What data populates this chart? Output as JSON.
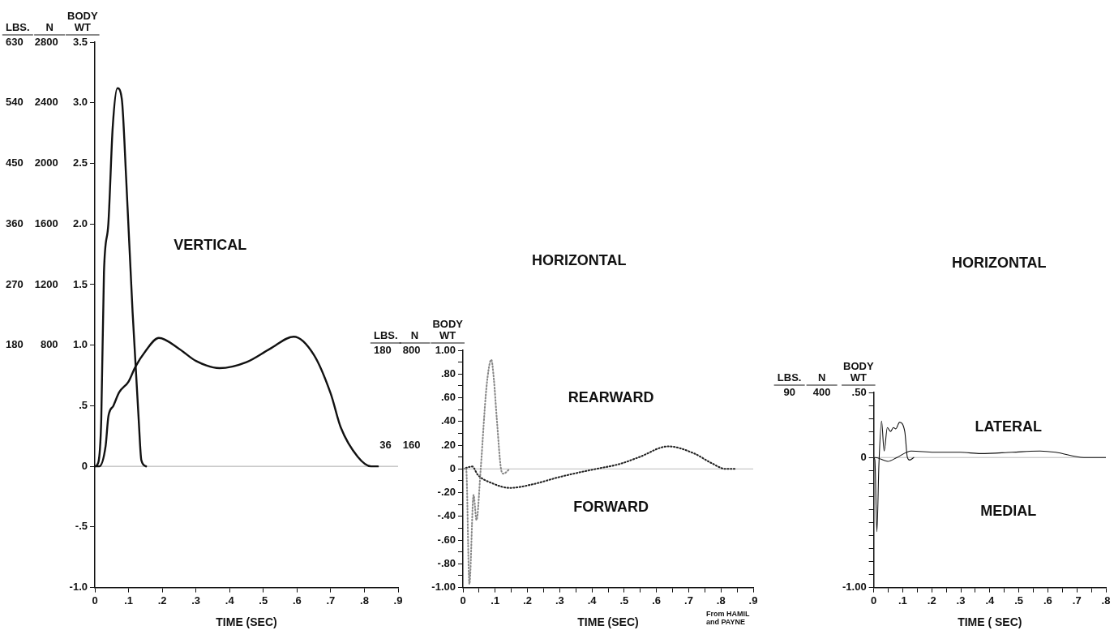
{
  "chart_data": [
    {
      "type": "line",
      "xlabel": "TIME (SEC)",
      "ylabel": "BODY WT",
      "y2label": "LBS.",
      "y3label": "N",
      "annotations": [
        "VERTICAL"
      ],
      "xlim": [
        0,
        0.9
      ],
      "xticks": [
        {
          "value": 0,
          "label": "0"
        },
        {
          "value": 0.1,
          "label": ".1"
        },
        {
          "value": 0.2,
          "label": ".2"
        },
        {
          "value": 0.3,
          "label": ".3"
        },
        {
          "value": 0.4,
          "label": ".4"
        },
        {
          "value": 0.5,
          "label": ".5"
        },
        {
          "value": 0.6,
          "label": ".6"
        },
        {
          "value": 0.7,
          "label": ".7"
        },
        {
          "value": 0.8,
          "label": ".8"
        },
        {
          "value": 0.9,
          "label": ".9"
        }
      ],
      "ylim": [
        -1,
        3.5
      ],
      "yticks": [
        {
          "value": -1,
          "label": "-1.0"
        },
        {
          "value": -0.5,
          "label": "-.5"
        },
        {
          "value": 0,
          "label": "0"
        },
        {
          "value": 0.5,
          "label": ".5"
        },
        {
          "value": 1,
          "label": "1.0"
        },
        {
          "value": 1.5,
          "label": "1.5"
        },
        {
          "value": 2,
          "label": "2.0"
        },
        {
          "value": 2.5,
          "label": "2.5"
        },
        {
          "value": 3,
          "label": "3.0"
        },
        {
          "value": 3.5,
          "label": "3.5"
        }
      ],
      "y2lim": [
        -180,
        630
      ],
      "y2ticks": [
        180,
        270,
        360,
        450,
        540,
        630
      ],
      "y3lim": [
        -800,
        2800
      ],
      "y3ticks": [
        800,
        1200,
        1600,
        2000,
        2400,
        2800
      ],
      "ref_lines": [
        {
          "axis": "y",
          "value": 0,
          "color": "#aaaaaa"
        }
      ],
      "grid": false,
      "legend": false,
      "marker": "none",
      "series": [
        {
          "color": "#111111",
          "line_style": "solid",
          "x": [
            0,
            0.01,
            0.019,
            0.027,
            0.04,
            0.053,
            0.067,
            0.08,
            0.093,
            0.112,
            0.13,
            0.138,
            0.152
          ],
          "values": [
            0,
            0.03,
            0.39,
            1.6,
            2.0,
            2.8,
            3.12,
            3.03,
            2.37,
            1.27,
            0.39,
            0.05,
            0
          ]
        },
        {
          "color": "#111111",
          "line_style": "solid",
          "x": [
            0,
            0.013,
            0.032,
            0.04,
            0.055,
            0.072,
            0.1,
            0.12,
            0.15,
            0.19,
            0.25,
            0.3,
            0.37,
            0.45,
            0.52,
            0.59,
            0.65,
            0.7,
            0.73,
            0.78,
            0.82,
            0.84
          ],
          "values": [
            0,
            0,
            0.17,
            0.41,
            0.5,
            0.61,
            0.7,
            0.82,
            0.95,
            1.06,
            0.97,
            0.87,
            0.81,
            0.86,
            0.97,
            1.07,
            0.92,
            0.6,
            0.32,
            0.08,
            0,
            0
          ]
        }
      ]
    },
    {
      "type": "line",
      "title": "HORIZONTAL",
      "xlabel": "TIME (SEC)",
      "ylabel": "BODY WT",
      "y2label": "LBS.",
      "y3label": "N",
      "annotations": [
        "REARWARD",
        "FORWARD",
        "From HAMIL and PAYNE"
      ],
      "xlim": [
        0,
        0.9
      ],
      "xticks": [
        {
          "value": 0,
          "label": "0"
        },
        {
          "value": 0.05,
          "label": null
        },
        {
          "value": 0.1,
          "label": ".1"
        },
        {
          "value": 0.15,
          "label": null
        },
        {
          "value": 0.2,
          "label": ".2"
        },
        {
          "value": 0.25,
          "label": null
        },
        {
          "value": 0.3,
          "label": ".3"
        },
        {
          "value": 0.35,
          "label": null
        },
        {
          "value": 0.4,
          "label": ".4"
        },
        {
          "value": 0.45,
          "label": null
        },
        {
          "value": 0.5,
          "label": ".5"
        },
        {
          "value": 0.55,
          "label": null
        },
        {
          "value": 0.6,
          "label": ".6"
        },
        {
          "value": 0.65,
          "label": null
        },
        {
          "value": 0.7,
          "label": ".7"
        },
        {
          "value": 0.75,
          "label": null
        },
        {
          "value": 0.8,
          "label": ".8"
        },
        {
          "value": 0.85,
          "label": null
        },
        {
          "value": 0.9,
          "label": ".9"
        }
      ],
      "ylim": [
        -1,
        1
      ],
      "yticks": [
        {
          "value": -1,
          "label": "-1.00"
        },
        {
          "value": -0.9,
          "label": null
        },
        {
          "value": -0.8,
          "label": "-.80"
        },
        {
          "value": -0.7,
          "label": null
        },
        {
          "value": -0.6,
          "label": "-.60"
        },
        {
          "value": -0.5,
          "label": null
        },
        {
          "value": -0.4,
          "label": "-.40"
        },
        {
          "value": -0.3,
          "label": null
        },
        {
          "value": -0.2,
          "label": "-.20"
        },
        {
          "value": -0.1,
          "label": null
        },
        {
          "value": 0,
          "label": "0"
        },
        {
          "value": 0.1,
          "label": null
        },
        {
          "value": 0.2,
          "label": ".20"
        },
        {
          "value": 0.3,
          "label": null
        },
        {
          "value": 0.4,
          "label": ".40"
        },
        {
          "value": 0.5,
          "label": null
        },
        {
          "value": 0.6,
          "label": ".60"
        },
        {
          "value": 0.7,
          "label": null
        },
        {
          "value": 0.8,
          "label": ".80"
        },
        {
          "value": 0.9,
          "label": null
        },
        {
          "value": 1,
          "label": "1.00"
        }
      ],
      "y2lim": [
        -180,
        180
      ],
      "y2ticks": [
        36,
        180
      ],
      "y3lim": [
        -800,
        800
      ],
      "y3ticks": [
        160,
        800
      ],
      "ref_lines": [
        {
          "axis": "y",
          "value": 0,
          "color": "#bbbbbb"
        }
      ],
      "grid": false,
      "legend": false,
      "marker": "none",
      "series": [
        {
          "color": "#888888",
          "line_style": "dotted",
          "x": [
            0,
            0.01,
            0.02,
            0.033,
            0.042,
            0.055,
            0.073,
            0.088,
            0.096,
            0.105,
            0.118,
            0.125,
            0.145
          ],
          "values": [
            0,
            0,
            -0.97,
            -0.22,
            -0.43,
            0,
            0.69,
            0.92,
            0.75,
            0.42,
            0,
            -0.04,
            0
          ]
        },
        {
          "color": "#222222",
          "line_style": "dotted",
          "x": [
            0,
            0.029,
            0.046,
            0.09,
            0.145,
            0.216,
            0.297,
            0.36,
            0.413,
            0.484,
            0.547,
            0.636,
            0.717,
            0.77,
            0.815,
            0.846
          ],
          "values": [
            0,
            0.02,
            -0.05,
            -0.12,
            -0.16,
            -0.13,
            -0.07,
            -0.03,
            0,
            0.04,
            0.1,
            0.19,
            0.13,
            0.05,
            0,
            0
          ]
        }
      ]
    },
    {
      "type": "line",
      "title": "HORIZONTAL",
      "xlabel": "TIME ( SEC)",
      "ylabel": "BODY WT",
      "y2label": "LBS.",
      "y3label": "N",
      "annotations": [
        "LATERAL",
        "MEDIAL",
        "90",
        "400"
      ],
      "xlim": [
        0,
        0.8
      ],
      "xticks": [
        {
          "value": 0,
          "label": "0"
        },
        {
          "value": 0.05,
          "label": null
        },
        {
          "value": 0.1,
          "label": ".1"
        },
        {
          "value": 0.15,
          "label": null
        },
        {
          "value": 0.2,
          "label": ".2"
        },
        {
          "value": 0.25,
          "label": null
        },
        {
          "value": 0.3,
          "label": ".3"
        },
        {
          "value": 0.35,
          "label": null
        },
        {
          "value": 0.4,
          "label": ".4"
        },
        {
          "value": 0.45,
          "label": null
        },
        {
          "value": 0.5,
          "label": ".5"
        },
        {
          "value": 0.55,
          "label": null
        },
        {
          "value": 0.6,
          "label": ".6"
        },
        {
          "value": 0.65,
          "label": null
        },
        {
          "value": 0.7,
          "label": ".7"
        },
        {
          "value": 0.75,
          "label": null
        },
        {
          "value": 0.8,
          "label": ".8"
        }
      ],
      "ylim": [
        -1,
        0.5
      ],
      "yticks": [
        {
          "value": -1,
          "label": "-1.00"
        },
        {
          "value": -0.9,
          "label": null
        },
        {
          "value": -0.8,
          "label": null
        },
        {
          "value": -0.7,
          "label": null
        },
        {
          "value": -0.6,
          "label": null
        },
        {
          "value": -0.5,
          "label": null
        },
        {
          "value": -0.4,
          "label": null
        },
        {
          "value": -0.3,
          "label": null
        },
        {
          "value": -0.2,
          "label": null
        },
        {
          "value": -0.1,
          "label": null
        },
        {
          "value": 0,
          "label": "0"
        },
        {
          "value": 0.1,
          "label": null
        },
        {
          "value": 0.2,
          "label": null
        },
        {
          "value": 0.3,
          "label": null
        },
        {
          "value": 0.4,
          "label": null
        },
        {
          "value": 0.5,
          "label": ".50"
        }
      ],
      "ref_lines": [
        {
          "axis": "y",
          "value": 0,
          "color": "#bbbbbb"
        }
      ],
      "grid": false,
      "legend": false,
      "marker": "none",
      "series": [
        {
          "color": "#111111",
          "line_style": "solid",
          "x": [
            0,
            0.004,
            0.011,
            0.018,
            0.027,
            0.036,
            0.047,
            0.058,
            0.068,
            0.076,
            0.089,
            0.107,
            0.116,
            0.124,
            0.138
          ],
          "values": [
            0,
            -0.02,
            -0.57,
            -0.05,
            0.28,
            0.05,
            0.23,
            0.2,
            0.23,
            0.22,
            0.27,
            0.2,
            0,
            -0.02,
            0
          ]
        },
        {
          "color": "#111111",
          "line_style": "solid",
          "x": [
            0,
            0.005,
            0.049,
            0.08,
            0.129,
            0.209,
            0.298,
            0.369,
            0.476,
            0.573,
            0.627,
            0.724,
            0.8
          ],
          "values": [
            0,
            0,
            -0.03,
            0,
            0.05,
            0.04,
            0.04,
            0.03,
            0.04,
            0.05,
            0.04,
            0,
            0
          ]
        }
      ]
    }
  ]
}
